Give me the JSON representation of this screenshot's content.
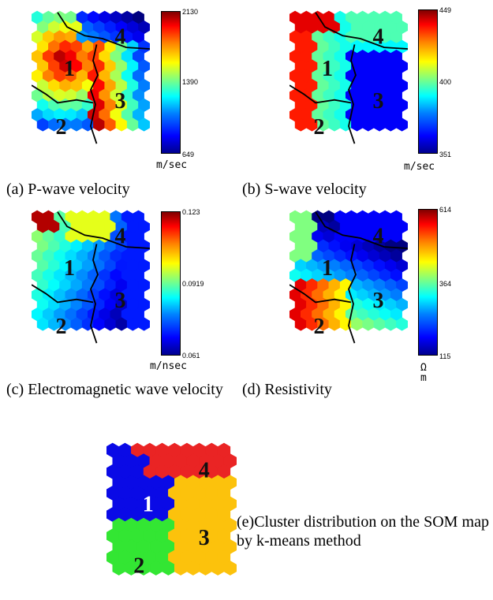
{
  "panels": [
    {
      "id": "a",
      "caption": "(a) P-wave velocity",
      "colorbar": {
        "max": "2130",
        "mid": "1390",
        "min": "649",
        "unit": "m/sec"
      },
      "cluster_labels": [
        "1",
        "2",
        "3",
        "4"
      ],
      "pattern": "pwave"
    },
    {
      "id": "b",
      "caption": "(b) S-wave velocity",
      "colorbar": {
        "max": "449",
        "mid": "400",
        "min": "351",
        "unit": "m/sec"
      },
      "cluster_labels": [
        "1",
        "2",
        "3",
        "4"
      ],
      "pattern": "swave"
    },
    {
      "id": "c",
      "caption": "(c) Electromagnetic wave velocity",
      "colorbar": {
        "max": "0.123",
        "mid": "0.0919",
        "min": "0.061",
        "unit": "m/nsec"
      },
      "cluster_labels": [
        "1",
        "2",
        "3",
        "4"
      ],
      "pattern": "em"
    },
    {
      "id": "d",
      "caption": "(d) Resistivity",
      "colorbar": {
        "max": "614",
        "mid": "364",
        "min": "115",
        "unit": "Ω m"
      },
      "cluster_labels": [
        "1",
        "2",
        "3",
        "4"
      ],
      "pattern": "resist"
    }
  ],
  "cluster_map": {
    "caption": "(e)Cluster distribution on the SOM map by k-means method",
    "labels": [
      "1",
      "2",
      "3",
      "4"
    ],
    "colors": {
      "1": "#0a0ae6",
      "2": "#33e633",
      "3": "#fcc20c",
      "4": "#ea2424"
    }
  }
}
